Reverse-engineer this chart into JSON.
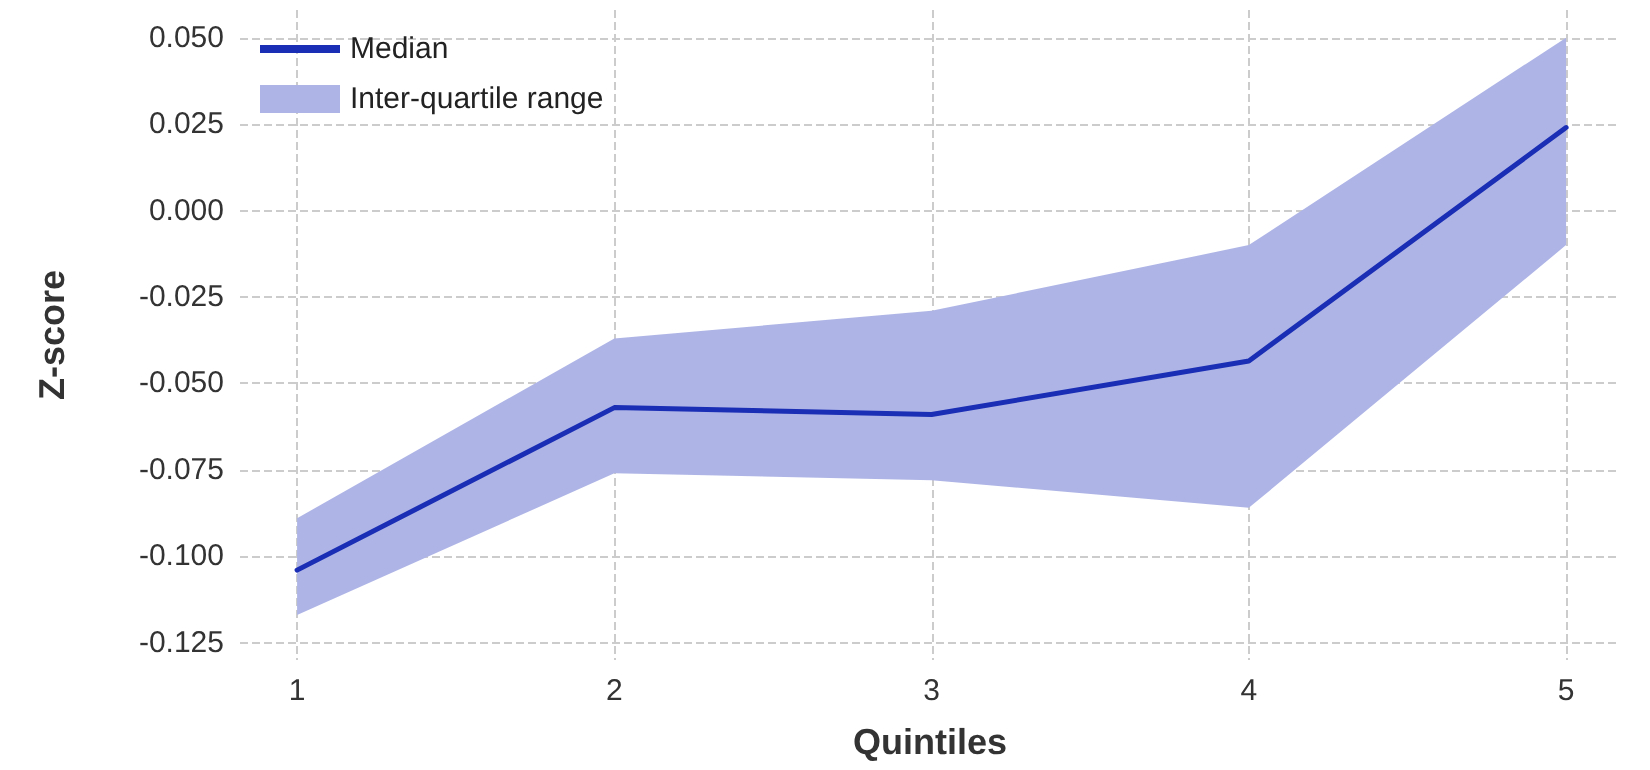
{
  "chart_data": {
    "type": "line",
    "xlabel": "Quintiles",
    "ylabel": "Z-score",
    "x": [
      1,
      2,
      3,
      4,
      5
    ],
    "series": [
      {
        "name": "Inter-quartile range",
        "type": "area",
        "color": "#aeb5e6",
        "values": [
          null,
          null,
          null,
          null,
          null
        ],
        "lower": [
          -0.117,
          -0.076,
          -0.078,
          -0.086,
          -0.01
        ],
        "upper": [
          -0.089,
          -0.037,
          -0.029,
          -0.01,
          0.05
        ]
      },
      {
        "name": "Median",
        "color": "#1a2db5",
        "values": [
          -0.104,
          -0.057,
          -0.059,
          -0.0435,
          0.024
        ]
      }
    ],
    "xlim": [
      0.82,
      5.17
    ],
    "xticks": [
      1,
      2,
      3,
      4,
      5
    ],
    "ylim": [
      -0.13,
      0.058
    ],
    "yticks": [
      {
        "value": -0.125,
        "label": "-0.125"
      },
      {
        "value": -0.1,
        "label": "-0.100"
      },
      {
        "value": -0.075,
        "label": "-0.075"
      },
      {
        "value": -0.05,
        "label": "-0.050"
      },
      {
        "value": -0.025,
        "label": "-0.025"
      },
      {
        "value": 0,
        "label": "0.000"
      },
      {
        "value": 0.025,
        "label": "0.025"
      },
      {
        "value": 0.05,
        "label": "0.050"
      }
    ],
    "grid": true,
    "legend": "top left",
    "marker": "none",
    "line_style": "solid"
  }
}
